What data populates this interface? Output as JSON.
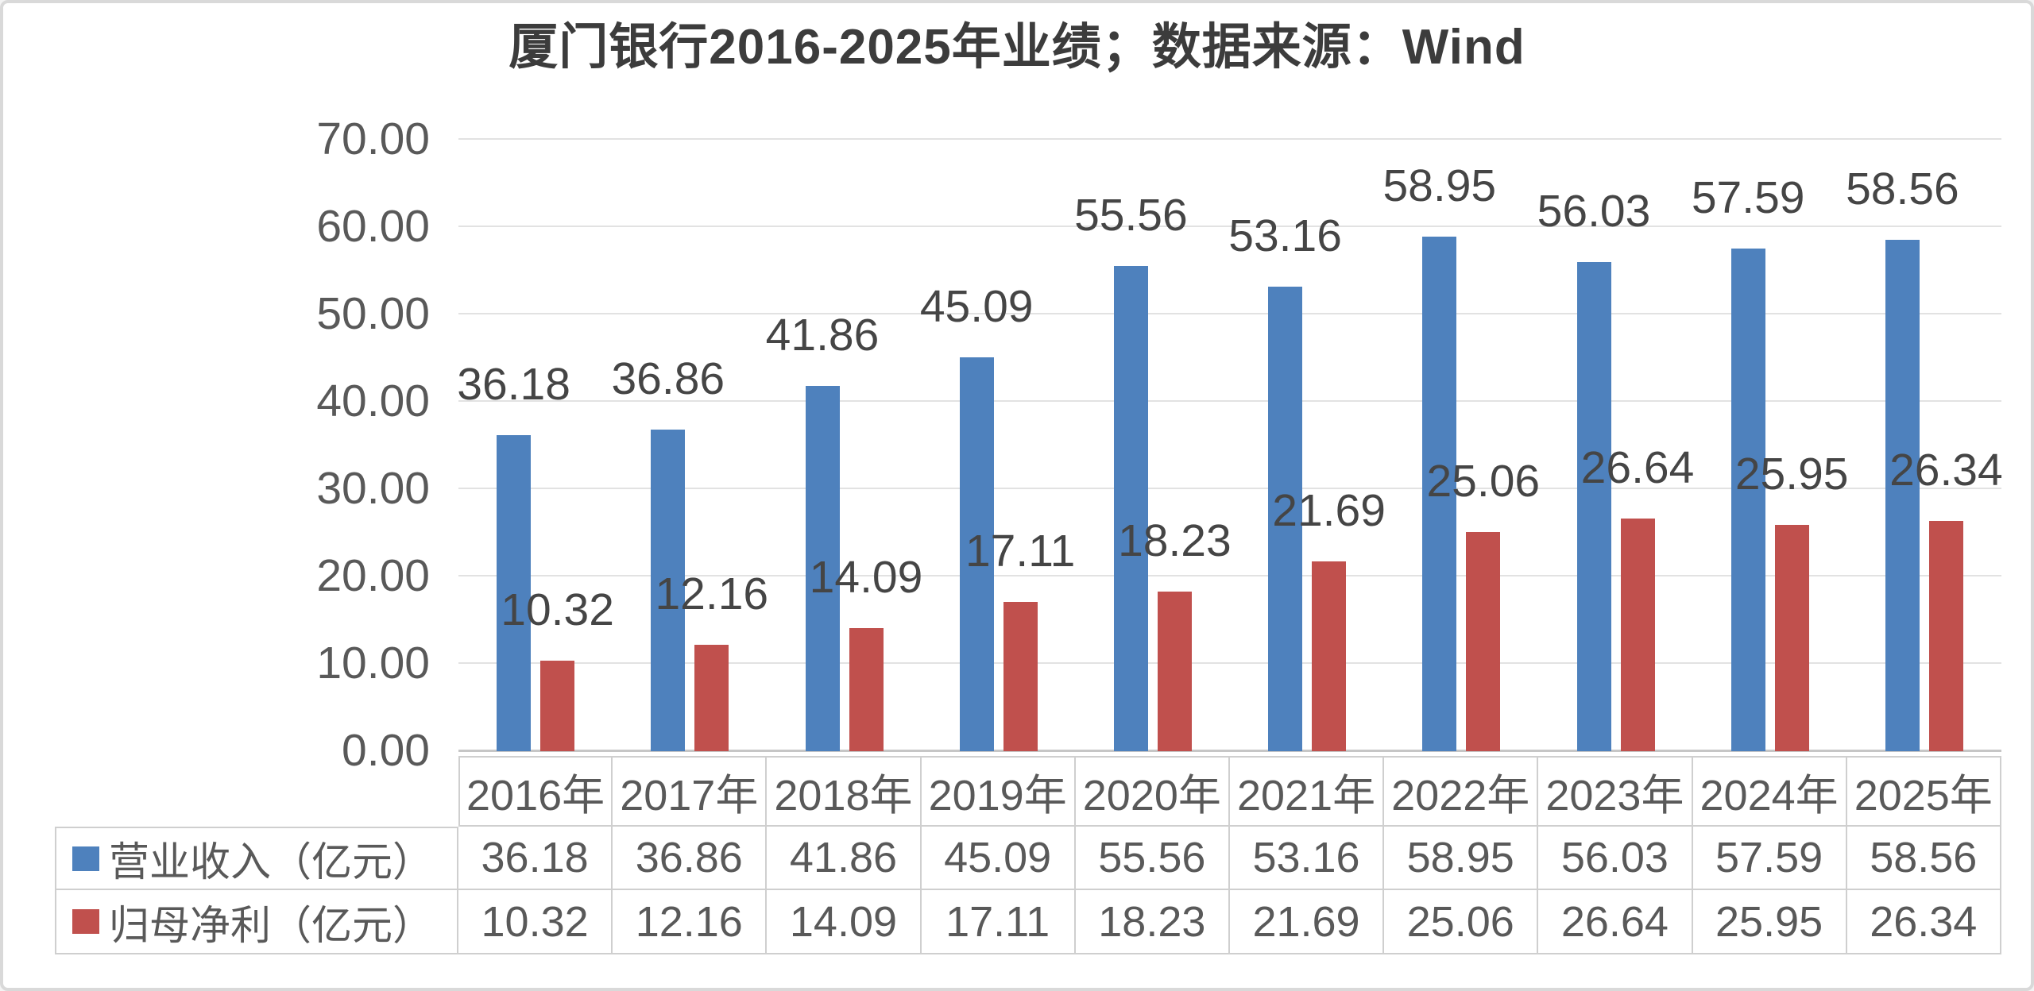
{
  "title": "厦门银行2016-2025年业绩；数据来源：Wind",
  "chart_data": {
    "type": "bar",
    "title": "厦门银行2016-2025年业绩；数据来源：Wind",
    "categories": [
      "2016年",
      "2017年",
      "2018年",
      "2019年",
      "2020年",
      "2021年",
      "2022年",
      "2023年",
      "2024年",
      "2025年"
    ],
    "series": [
      {
        "name": "营业收入（亿元）",
        "color": "#4E81BD",
        "values": [
          36.18,
          36.86,
          41.86,
          45.09,
          55.56,
          53.16,
          58.95,
          56.03,
          57.59,
          58.56
        ]
      },
      {
        "name": "归母净利（亿元）",
        "color": "#C0504D",
        "values": [
          10.32,
          12.16,
          14.09,
          17.11,
          18.23,
          21.69,
          25.06,
          26.64,
          25.95,
          26.34
        ]
      }
    ],
    "ylim": [
      0,
      70
    ],
    "ytick_labels": [
      "70.00",
      "60.00",
      "50.00",
      "40.00",
      "30.00",
      "20.00",
      "10.00",
      "0.00"
    ],
    "grid": true,
    "value_labels": "above-bars, 2 decimals",
    "legend_position": "data-table-left-column",
    "xlabel": "",
    "ylabel": ""
  }
}
